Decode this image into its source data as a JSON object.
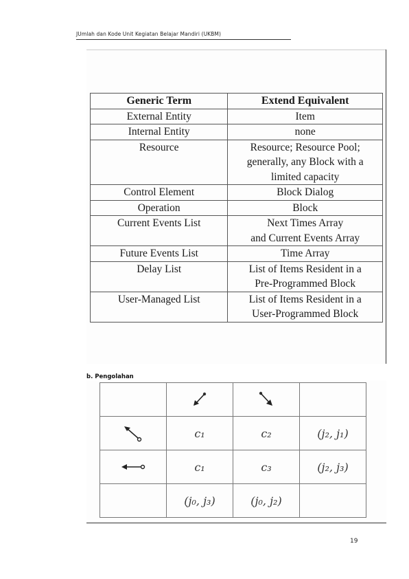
{
  "header": {
    "text": "JUmlah dan Kode Unit Kegiatan Belajar Mandiri (UKBM)"
  },
  "term_table": {
    "columns": [
      "Generic Term",
      "Extend Equivalent"
    ],
    "rows": [
      {
        "generic": "External Entity",
        "extend": "Item"
      },
      {
        "generic": "Internal Entity",
        "extend": "none"
      },
      {
        "generic": "Resource",
        "extend_lines": [
          "Resource; Resource Pool;",
          "generally, any Block with a",
          "limited capacity"
        ]
      },
      {
        "generic": "Control Element",
        "extend": "Block Dialog"
      },
      {
        "generic": "Operation",
        "extend": "Block"
      },
      {
        "generic": "Current Events List",
        "extend_lines": [
          "Next Times Array",
          "and Current Events Array"
        ]
      },
      {
        "generic": "Future Events List",
        "extend": "Time Array"
      },
      {
        "generic": "Delay List",
        "extend_lines": [
          "List of Items Resident in a",
          "Pre-Programmed Block"
        ]
      },
      {
        "generic": "User-Managed List",
        "extend_lines": [
          "List of Items Resident in a",
          "User-Programmed Block"
        ]
      }
    ]
  },
  "section_b": {
    "label": "b.   Pengolahan"
  },
  "grid_table": {
    "header_icons": [
      "arrow-down-left-icon",
      "arrow-down-right-icon"
    ],
    "rows": [
      {
        "icon": "arrow-up-left-circle-icon",
        "cells": [
          "c₁",
          "c₂",
          "(j₂, j₁)"
        ]
      },
      {
        "icon": "arrow-left-circle-icon",
        "cells": [
          "c₁",
          "c₃",
          "(j₂, j₃)"
        ]
      }
    ],
    "bottom_row": [
      "(j₀, j₃)",
      "(j₀, j₂)"
    ]
  },
  "page_number": "19"
}
